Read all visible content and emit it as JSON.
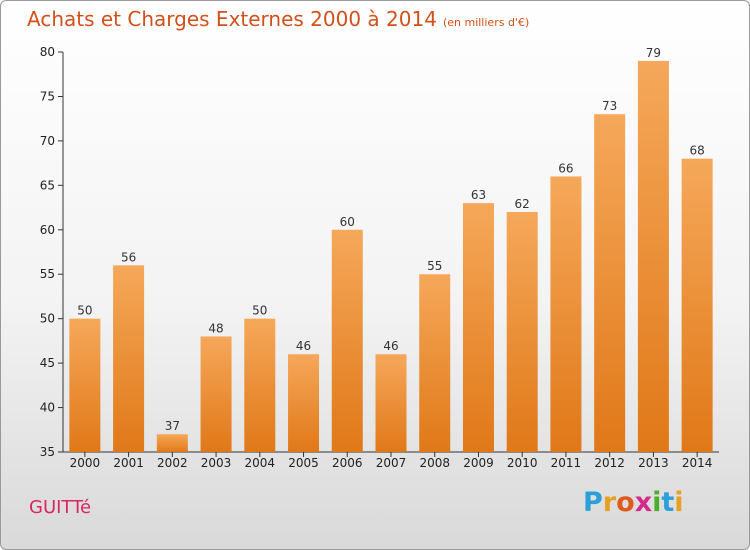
{
  "chart_data": {
    "type": "bar",
    "title": "Achats et Charges Externes 2000 à 2014",
    "subtitle": "(en milliers d'€)",
    "categories": [
      "2000",
      "2001",
      "2002",
      "2003",
      "2004",
      "2005",
      "2006",
      "2007",
      "2008",
      "2009",
      "2010",
      "2011",
      "2012",
      "2013",
      "2014"
    ],
    "values": [
      50,
      56,
      37,
      48,
      50,
      46,
      60,
      46,
      55,
      63,
      62,
      66,
      73,
      79,
      68
    ],
    "ylim": [
      35,
      80
    ],
    "yticks": [
      35,
      40,
      45,
      50,
      55,
      60,
      65,
      70,
      75,
      80
    ],
    "grid": false,
    "bar_color_top": "#f5a85a",
    "bar_color_bottom": "#e07818"
  },
  "commune": "GUITTé",
  "logo": {
    "letters": [
      "P",
      "r",
      "o",
      "x",
      "i",
      "t",
      "i"
    ],
    "colors": [
      "#2b9fd8",
      "#e8a020",
      "#e05a20",
      "#d42a8a",
      "#4caf2a",
      "#2b9fd8",
      "#e8a020"
    ]
  }
}
